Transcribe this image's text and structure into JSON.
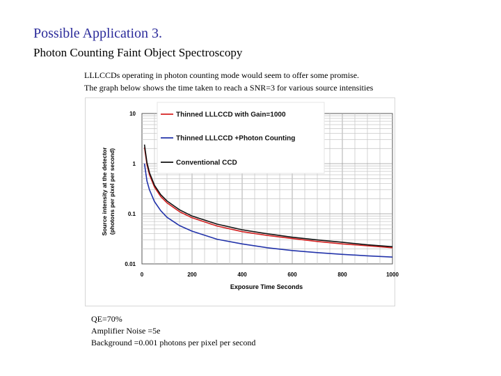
{
  "slide": {
    "title": "Possible Application 3.",
    "subtitle": "Photon Counting Faint Object Spectroscopy",
    "intro_lines": [
      "LLLCCDs operating in photon counting mode would seem to offer some promise.",
      "The graph below shows the time taken to reach a SNR=3 for various source intensities"
    ],
    "notes": [
      "QE=70%",
      "Amplifier Noise =5e",
      "Background =0.001 photons per pixel per second"
    ]
  },
  "chart_data": {
    "type": "line",
    "xlabel": "Exposure Time Seconds",
    "ylabel_lines": [
      "Source intensity at the detector",
      "(photons per pixel per second)"
    ],
    "xlim": [
      0,
      1000
    ],
    "ylim": [
      0.01,
      10
    ],
    "yscale": "log",
    "grid": true,
    "legend_position": "top-right",
    "x_ticks": [
      0,
      200,
      400,
      600,
      800,
      1000
    ],
    "y_ticks": [
      0.01,
      0.1,
      1,
      10
    ],
    "y_tick_labels": [
      "0.01",
      "0.1",
      "1",
      "10"
    ],
    "x": [
      10,
      20,
      30,
      50,
      75,
      100,
      150,
      200,
      300,
      400,
      500,
      600,
      700,
      800,
      900,
      1000
    ],
    "series": [
      {
        "name": "Thinned LLLCCD with Gain=1000",
        "color": "#d42020",
        "values": [
          2.1,
          0.95,
          0.6,
          0.34,
          0.22,
          0.165,
          0.11,
          0.083,
          0.057,
          0.044,
          0.037,
          0.032,
          0.028,
          0.025,
          0.023,
          0.021
        ]
      },
      {
        "name": "Thinned LLLCCD +Photon Counting",
        "color": "#2233aa",
        "values": [
          1.0,
          0.45,
          0.3,
          0.175,
          0.115,
          0.085,
          0.058,
          0.045,
          0.031,
          0.025,
          0.021,
          0.0185,
          0.0168,
          0.0155,
          0.0145,
          0.0137
        ]
      },
      {
        "name": "Conventional CCD",
        "color": "#111111",
        "values": [
          2.4,
          1.05,
          0.66,
          0.37,
          0.24,
          0.18,
          0.12,
          0.09,
          0.062,
          0.048,
          0.04,
          0.034,
          0.03,
          0.027,
          0.024,
          0.022
        ]
      }
    ]
  }
}
